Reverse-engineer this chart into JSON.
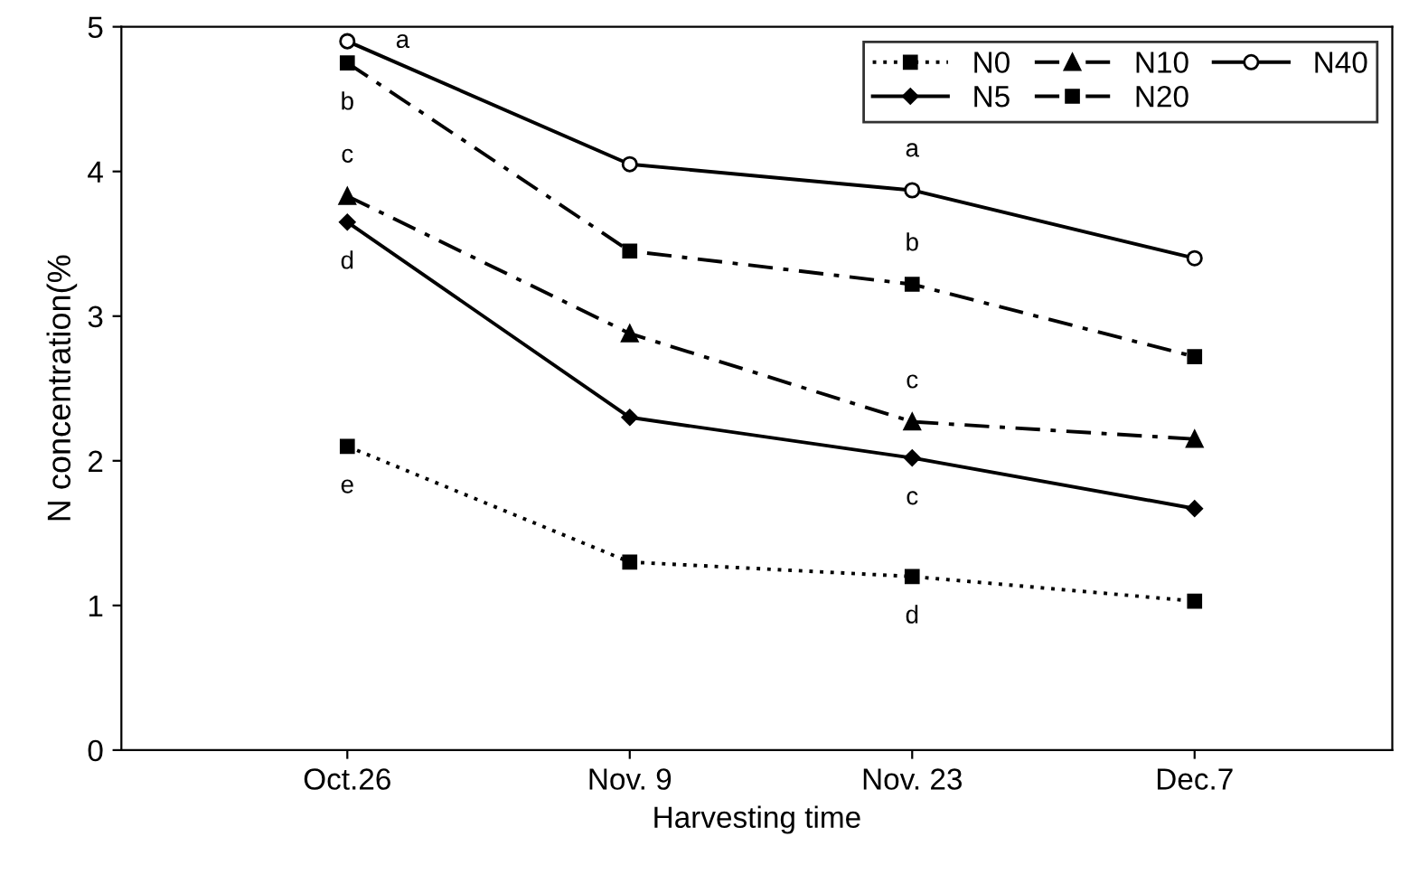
{
  "chart_data": {
    "type": "line",
    "xlabel": "Harvesting time",
    "ylabel": "N concentration(%",
    "categories": [
      "Oct.26",
      "Nov. 9",
      "Nov. 23",
      "Dec.7"
    ],
    "series": [
      {
        "name": "N0",
        "color": "#000000",
        "values": [
          2.1,
          1.3,
          1.2,
          1.03
        ],
        "marker": "square",
        "line_style": "dotted"
      },
      {
        "name": "N5",
        "color": "#000000",
        "values": [
          3.65,
          2.3,
          2.02,
          1.67
        ],
        "marker": "diamond",
        "line_style": "solid"
      },
      {
        "name": "N10",
        "color": "#000000",
        "values": [
          3.83,
          2.88,
          2.27,
          2.15
        ],
        "marker": "triangle",
        "line_style": "dashed"
      },
      {
        "name": "N20",
        "color": "#000000",
        "values": [
          4.75,
          3.45,
          3.22,
          2.72
        ],
        "marker": "square",
        "line_style": "dashed"
      },
      {
        "name": "N40",
        "color": "#000000",
        "values": [
          4.9,
          4.05,
          3.87,
          3.4
        ],
        "marker": "circle",
        "line_style": "solid"
      }
    ],
    "ylim": [
      0,
      5
    ],
    "yticks": [
      0,
      1,
      2,
      3,
      4,
      5
    ],
    "grid": false,
    "legend": "top right",
    "annotations": [
      {
        "text": "a",
        "x": "Oct.26",
        "y": 4.9
      },
      {
        "text": "b",
        "x": "Oct.26",
        "y": 4.75
      },
      {
        "text": "c",
        "x": "Oct.26",
        "y": 3.83
      },
      {
        "text": "d",
        "x": "Oct.26",
        "y": 3.65
      },
      {
        "text": "e",
        "x": "Oct.26",
        "y": 2.1
      },
      {
        "text": "a",
        "x": "Nov. 23",
        "y": 3.87
      },
      {
        "text": "b",
        "x": "Nov. 23",
        "y": 3.22
      },
      {
        "text": "c",
        "x": "Nov. 23",
        "y": 2.27
      },
      {
        "text": "c",
        "x": "Nov. 23",
        "y": 2.02
      },
      {
        "text": "d",
        "x": "Nov. 23",
        "y": 1.2
      }
    ]
  }
}
